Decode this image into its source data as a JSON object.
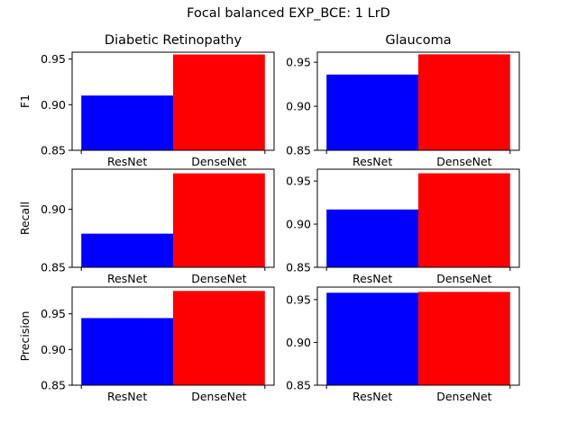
{
  "figure": {
    "suptitle": "Focal balanced EXP_BCE: 1 LrD"
  },
  "colors": {
    "ResNet": "#0000ff",
    "DenseNet": "#ff0000"
  },
  "chart_data": [
    {
      "type": "bar",
      "row_label": "F1",
      "column_title": "Diabetic Retinopathy",
      "categories": [
        "ResNet",
        "DenseNet"
      ],
      "values": [
        0.91,
        0.955
      ],
      "ylim": [
        0.85,
        0.9575
      ],
      "yticks": [
        "0.85",
        "0.90",
        "0.95"
      ],
      "grid": false
    },
    {
      "type": "bar",
      "row_label": "F1",
      "column_title": "Glaucoma",
      "categories": [
        "ResNet",
        "DenseNet"
      ],
      "values": [
        0.936,
        0.959
      ],
      "ylim": [
        0.85,
        0.9614
      ],
      "yticks": [
        "0.85",
        "0.90",
        "0.95"
      ],
      "grid": false
    },
    {
      "type": "bar",
      "row_label": "Recall",
      "categories": [
        "ResNet",
        "DenseNet"
      ],
      "values": [
        0.879,
        0.931
      ],
      "ylim": [
        0.85,
        0.9346
      ],
      "yticks": [
        "0.85",
        "0.90"
      ],
      "grid": false
    },
    {
      "type": "bar",
      "row_label": "Recall",
      "categories": [
        "ResNet",
        "DenseNet"
      ],
      "values": [
        0.917,
        0.959
      ],
      "ylim": [
        0.85,
        0.9637
      ],
      "yticks": [
        "0.85",
        "0.90",
        "0.95"
      ],
      "grid": false
    },
    {
      "type": "bar",
      "row_label": "Precision",
      "categories": [
        "ResNet",
        "DenseNet"
      ],
      "values": [
        0.944,
        0.982
      ],
      "ylim": [
        0.85,
        0.9874
      ],
      "yticks": [
        "0.85",
        "0.90",
        "0.95"
      ],
      "grid": false
    },
    {
      "type": "bar",
      "row_label": "Precision",
      "categories": [
        "ResNet",
        "DenseNet"
      ],
      "values": [
        0.958,
        0.959
      ],
      "ylim": [
        0.85,
        0.9646
      ],
      "yticks": [
        "0.85",
        "0.90",
        "0.95"
      ],
      "grid": false
    }
  ]
}
